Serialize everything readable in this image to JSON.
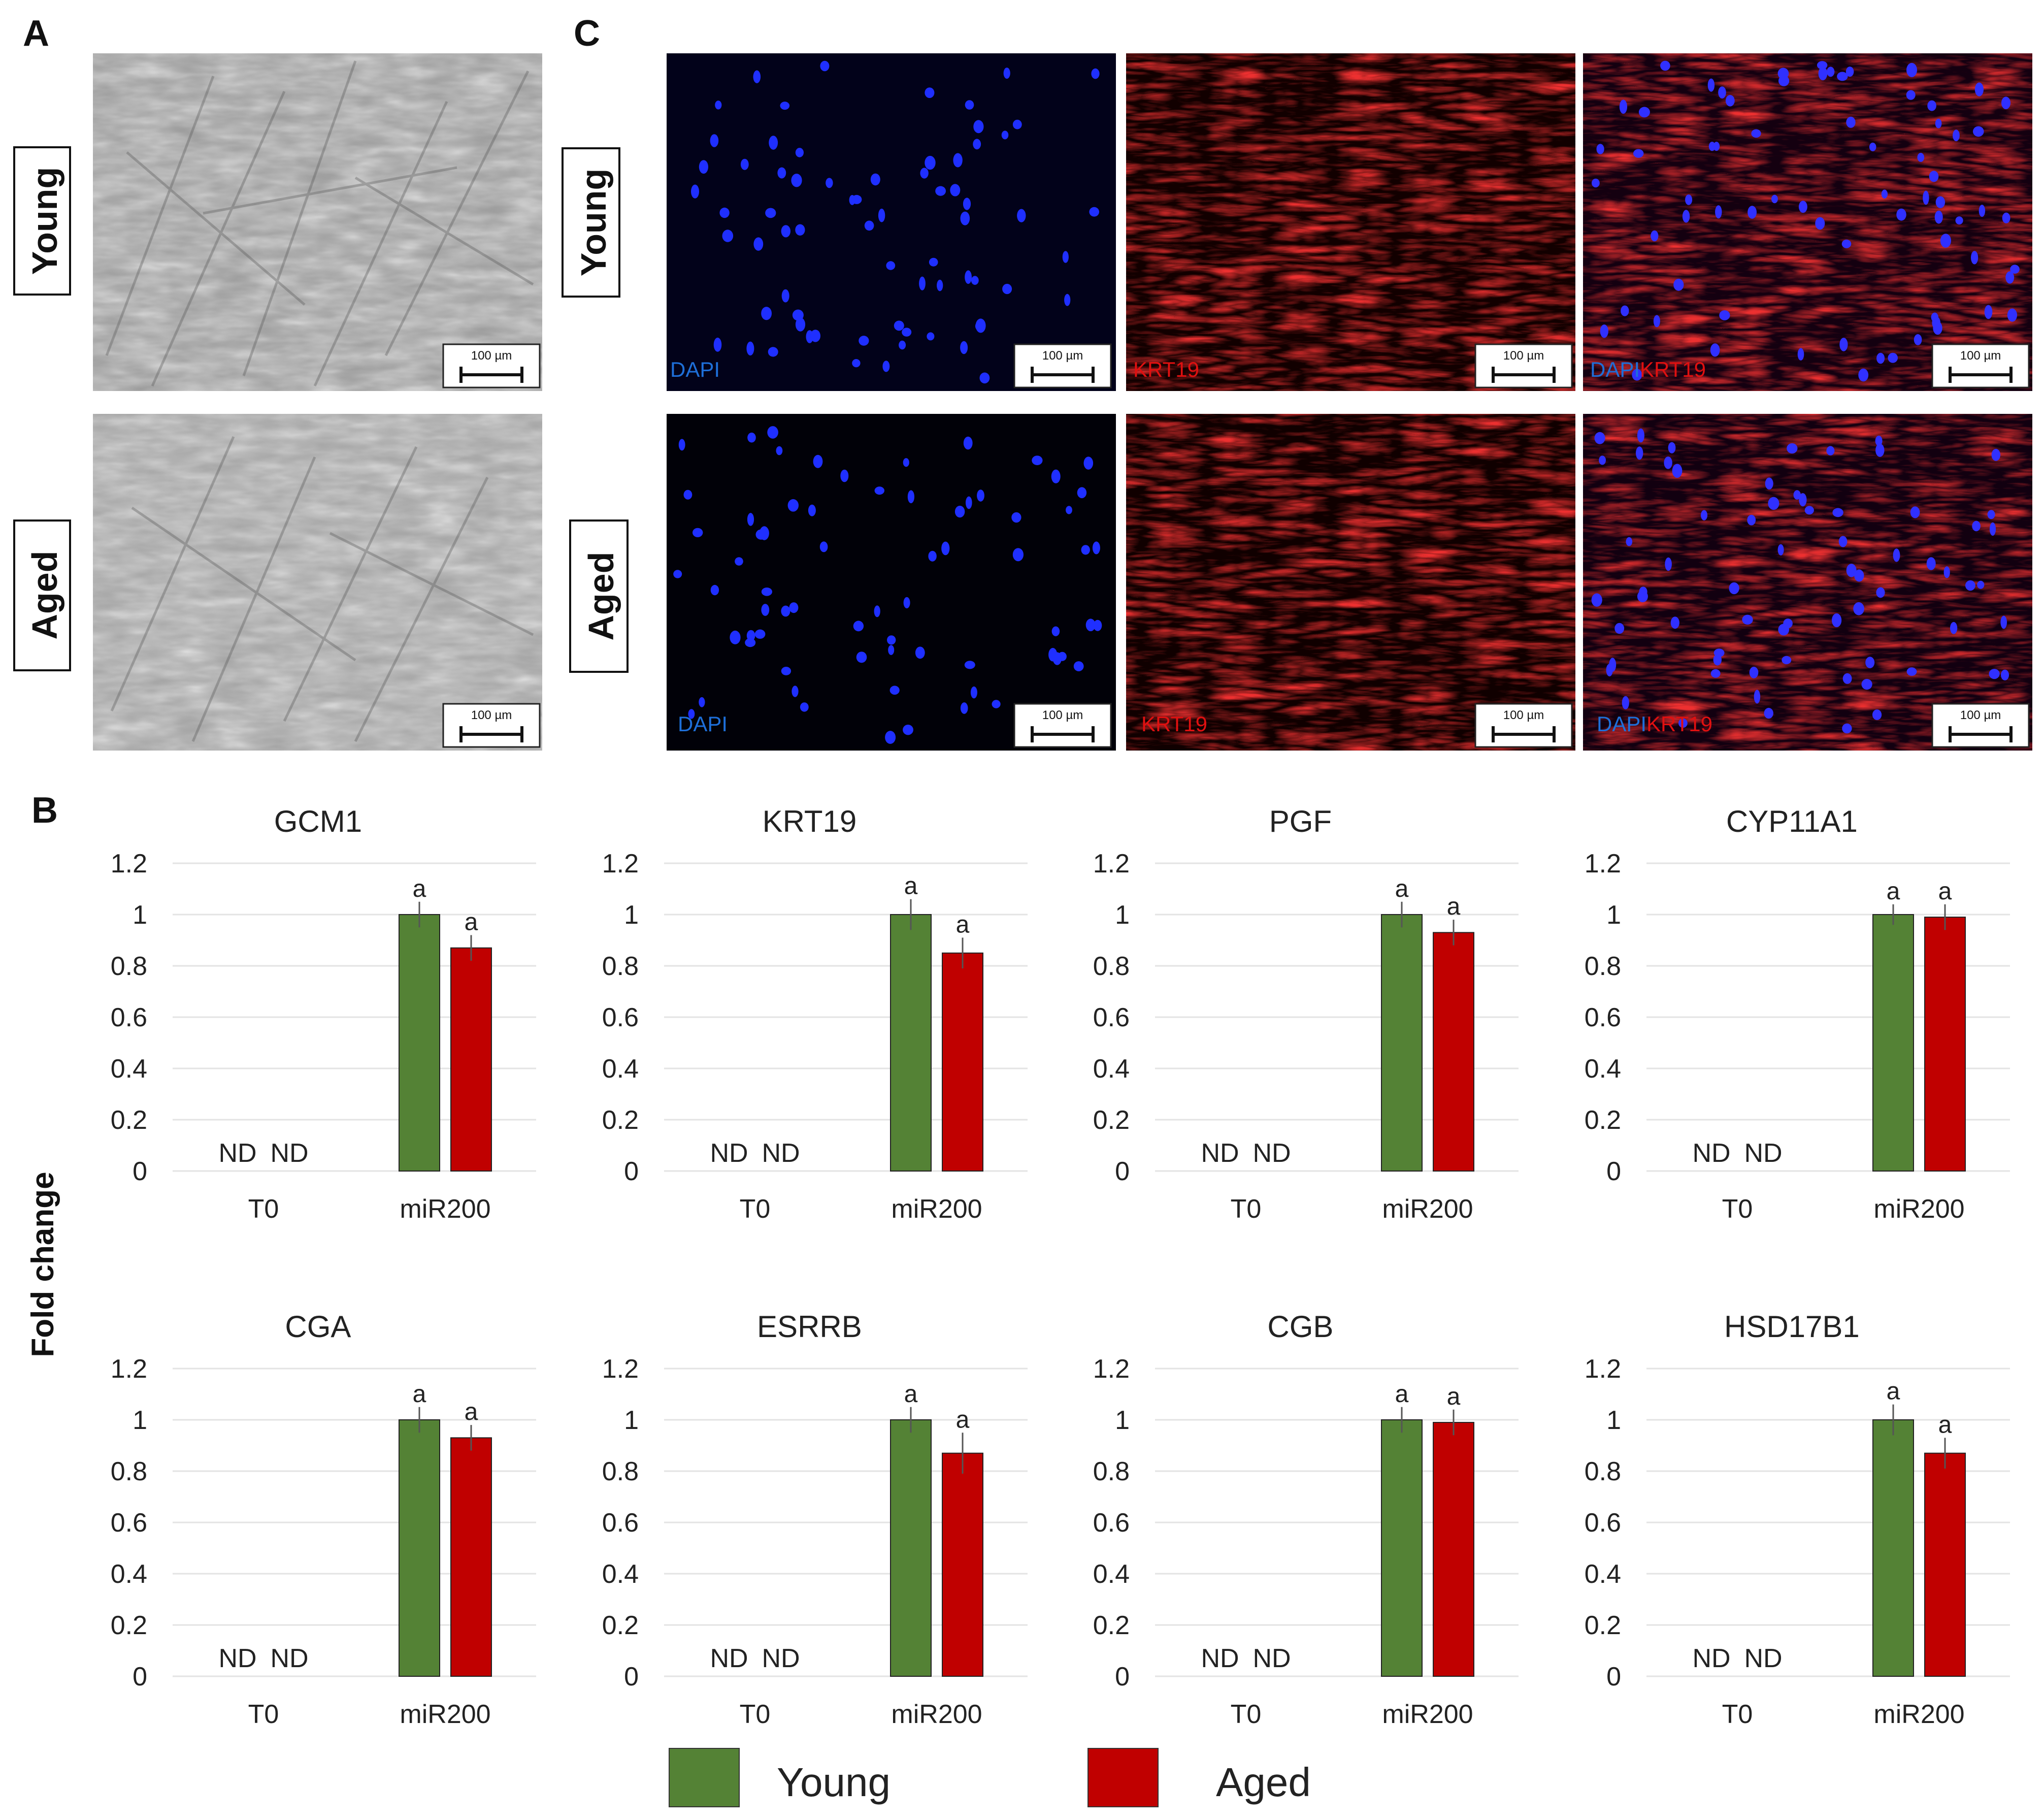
{
  "panel_labels": {
    "a": "A",
    "b": "B",
    "c": "C"
  },
  "row_labels": {
    "young": "Young",
    "aged": "Aged"
  },
  "scale_bar_text": "100 µm",
  "channels": {
    "dapi": "DAPI",
    "krt19": "KRT19"
  },
  "colors": {
    "young": "#548235",
    "aged": "#C00000",
    "dapi": "#1E6FD9",
    "krt19": "#E01010",
    "grid": "#E3E3E3"
  },
  "y_axis_label": "Fold change",
  "legend": [
    {
      "label": "Young",
      "color": "#548235"
    },
    {
      "label": "Aged",
      "color": "#C00000"
    }
  ],
  "chart_data": [
    {
      "type": "bar",
      "title": "GCM1",
      "categories": [
        "T0",
        "miR200"
      ],
      "series": [
        {
          "name": "Young",
          "values": [
            null,
            1.0
          ],
          "errors": [
            null,
            0.05
          ]
        },
        {
          "name": "Aged",
          "values": [
            null,
            0.87
          ],
          "errors": [
            null,
            0.05
          ]
        }
      ],
      "ylim": [
        0,
        1.2
      ],
      "yticks": [
        "0",
        "0.2",
        "0.4",
        "0.6",
        "0.8",
        "1",
        "1.2"
      ],
      "not_detected_label": "ND",
      "significance": [
        "a",
        "a"
      ],
      "ylabel": "Fold change"
    },
    {
      "type": "bar",
      "title": "KRT19",
      "categories": [
        "T0",
        "miR200"
      ],
      "series": [
        {
          "name": "Young",
          "values": [
            null,
            1.0
          ],
          "errors": [
            null,
            0.06
          ]
        },
        {
          "name": "Aged",
          "values": [
            null,
            0.85
          ],
          "errors": [
            null,
            0.06
          ]
        }
      ],
      "ylim": [
        0,
        1.2
      ],
      "yticks": [
        "0",
        "0.2",
        "0.4",
        "0.6",
        "0.8",
        "1",
        "1.2"
      ],
      "not_detected_label": "ND",
      "significance": [
        "a",
        "a"
      ],
      "ylabel": "Fold change"
    },
    {
      "type": "bar",
      "title": "PGF",
      "categories": [
        "T0",
        "miR200"
      ],
      "series": [
        {
          "name": "Young",
          "values": [
            null,
            1.0
          ],
          "errors": [
            null,
            0.05
          ]
        },
        {
          "name": "Aged",
          "values": [
            null,
            0.93
          ],
          "errors": [
            null,
            0.05
          ]
        }
      ],
      "ylim": [
        0,
        1.2
      ],
      "yticks": [
        "0",
        "0.2",
        "0.4",
        "0.6",
        "0.8",
        "1",
        "1.2"
      ],
      "not_detected_label": "ND",
      "significance": [
        "a",
        "a"
      ],
      "ylabel": "Fold change"
    },
    {
      "type": "bar",
      "title": "CYP11A1",
      "categories": [
        "T0",
        "miR200"
      ],
      "series": [
        {
          "name": "Young",
          "values": [
            null,
            1.0
          ],
          "errors": [
            null,
            0.04
          ]
        },
        {
          "name": "Aged",
          "values": [
            null,
            0.99
          ],
          "errors": [
            null,
            0.05
          ]
        }
      ],
      "ylim": [
        0,
        1.2
      ],
      "yticks": [
        "0",
        "0.2",
        "0.4",
        "0.6",
        "0.8",
        "1",
        "1.2"
      ],
      "not_detected_label": "ND",
      "significance": [
        "a",
        "a"
      ],
      "ylabel": "Fold change"
    },
    {
      "type": "bar",
      "title": "CGA",
      "categories": [
        "T0",
        "miR200"
      ],
      "series": [
        {
          "name": "Young",
          "values": [
            null,
            1.0
          ],
          "errors": [
            null,
            0.05
          ]
        },
        {
          "name": "Aged",
          "values": [
            null,
            0.93
          ],
          "errors": [
            null,
            0.05
          ]
        }
      ],
      "ylim": [
        0,
        1.2
      ],
      "yticks": [
        "0",
        "0.2",
        "0.4",
        "0.6",
        "0.8",
        "1",
        "1.2"
      ],
      "not_detected_label": "ND",
      "significance": [
        "a",
        "a"
      ],
      "ylabel": "Fold change"
    },
    {
      "type": "bar",
      "title": "ESRRB",
      "categories": [
        "T0",
        "miR200"
      ],
      "series": [
        {
          "name": "Young",
          "values": [
            null,
            1.0
          ],
          "errors": [
            null,
            0.05
          ]
        },
        {
          "name": "Aged",
          "values": [
            null,
            0.87
          ],
          "errors": [
            null,
            0.08
          ]
        }
      ],
      "ylim": [
        0,
        1.2
      ],
      "yticks": [
        "0",
        "0.2",
        "0.4",
        "0.6",
        "0.8",
        "1",
        "1.2"
      ],
      "not_detected_label": "ND",
      "significance": [
        "a",
        "a"
      ],
      "ylabel": "Fold change"
    },
    {
      "type": "bar",
      "title": "CGB",
      "categories": [
        "T0",
        "miR200"
      ],
      "series": [
        {
          "name": "Young",
          "values": [
            null,
            1.0
          ],
          "errors": [
            null,
            0.05
          ]
        },
        {
          "name": "Aged",
          "values": [
            null,
            0.99
          ],
          "errors": [
            null,
            0.05
          ]
        }
      ],
      "ylim": [
        0,
        1.2
      ],
      "yticks": [
        "0",
        "0.2",
        "0.4",
        "0.6",
        "0.8",
        "1",
        "1.2"
      ],
      "not_detected_label": "ND",
      "significance": [
        "a",
        "a"
      ],
      "ylabel": "Fold change"
    },
    {
      "type": "bar",
      "title": "HSD17B1",
      "categories": [
        "T0",
        "miR200"
      ],
      "series": [
        {
          "name": "Young",
          "values": [
            null,
            1.0
          ],
          "errors": [
            null,
            0.06
          ]
        },
        {
          "name": "Aged",
          "values": [
            null,
            0.87
          ],
          "errors": [
            null,
            0.06
          ]
        }
      ],
      "ylim": [
        0,
        1.2
      ],
      "yticks": [
        "0",
        "0.2",
        "0.4",
        "0.6",
        "0.8",
        "1",
        "1.2"
      ],
      "not_detected_label": "ND",
      "significance": [
        "a",
        "a"
      ],
      "ylabel": "Fold change"
    }
  ]
}
